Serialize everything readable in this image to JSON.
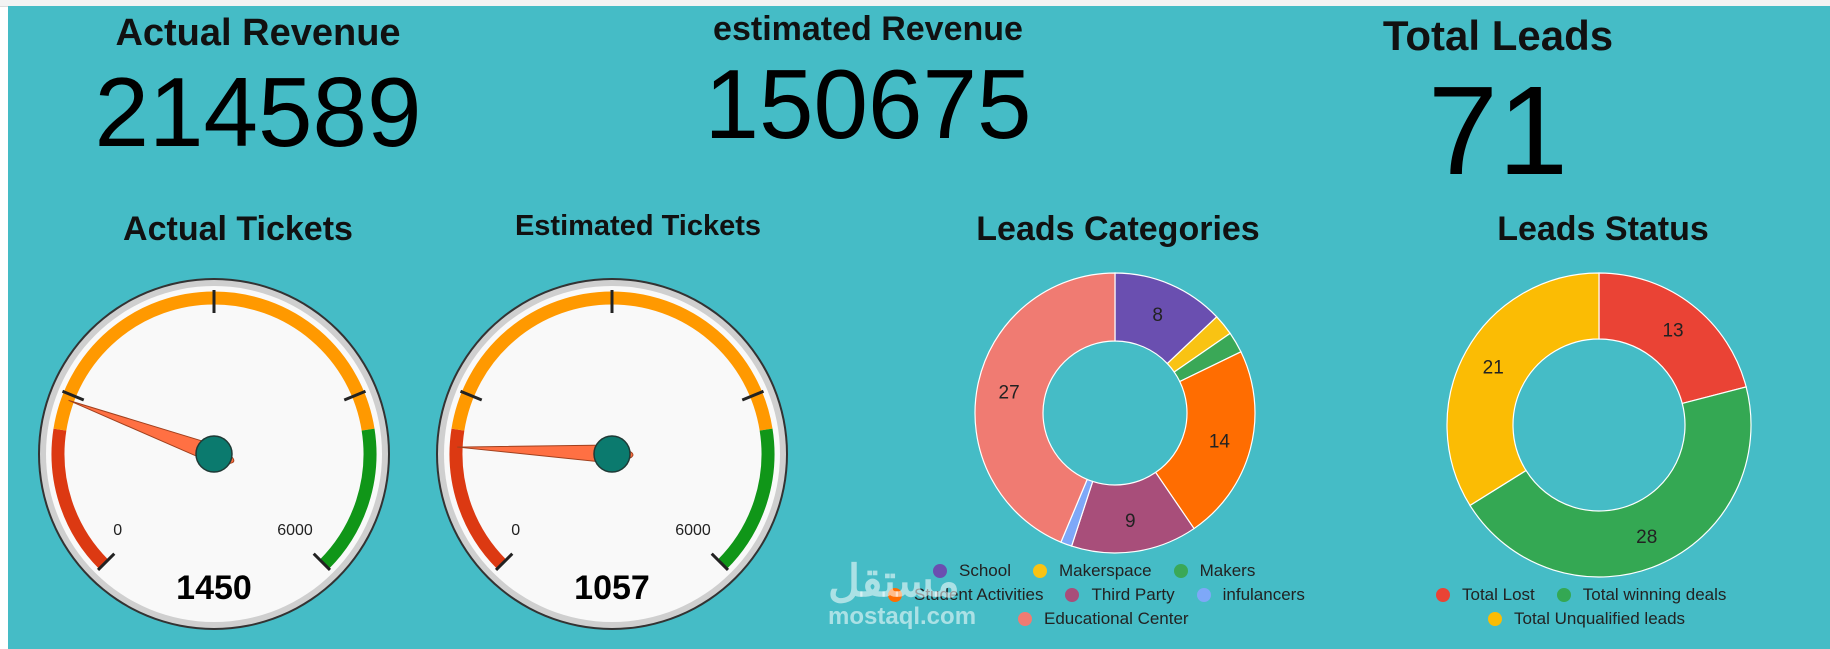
{
  "kpis": {
    "actual_revenue": {
      "label": "Actual Revenue",
      "value": "214589"
    },
    "estimated_revenue": {
      "label": "estimated Revenue",
      "value": "150675"
    },
    "total_leads": {
      "label": "Total Leads",
      "value": "71"
    }
  },
  "gauges": [
    {
      "title": "Actual Tickets",
      "value": 1450,
      "value_text": "1450",
      "min": 0,
      "max": 6000,
      "min_label": "0",
      "max_label": "6000"
    },
    {
      "title": "Estimated Tickets",
      "value": 1057,
      "value_text": "1057",
      "min": 0,
      "max": 6000,
      "min_label": "0",
      "max_label": "6000"
    }
  ],
  "chart_data": [
    {
      "type": "pie",
      "title": "Leads Categories",
      "donut": true,
      "slices": [
        {
          "name": "School",
          "value": 8,
          "label": "8",
          "color": "#6a4fb0"
        },
        {
          "name": "Makerspace",
          "value": 1.5,
          "label": "",
          "color": "#f9c313"
        },
        {
          "name": "Makers",
          "value": 1.5,
          "label": "",
          "color": "#3aa857"
        },
        {
          "name": "Student Activities",
          "value": 14,
          "label": "14",
          "color": "#ff6d01"
        },
        {
          "name": "Third Party",
          "value": 9,
          "label": "9",
          "color": "#a84e7a"
        },
        {
          "name": "infulancers",
          "value": 0.8,
          "label": "",
          "color": "#7ea8f8"
        },
        {
          "name": "Educational Center",
          "value": 27,
          "label": "27",
          "color": "#f07b72"
        }
      ],
      "legend_order": [
        [
          "School",
          "Makerspace",
          "Makers"
        ],
        [
          "Student Activities",
          "Third Party",
          "infulancers"
        ],
        [
          "Educational Center"
        ]
      ],
      "legend_position": "bottom"
    },
    {
      "type": "pie",
      "title": "Leads Status",
      "donut": true,
      "slices": [
        {
          "name": "Total Lost",
          "value": 13,
          "label": "13",
          "color": "#ea4335"
        },
        {
          "name": "Total winning deals",
          "value": 28,
          "label": "28",
          "color": "#34a853"
        },
        {
          "name": "Total Unqualified leads",
          "value": 21,
          "label": "21",
          "color": "#fbbc04"
        }
      ],
      "legend_order": [
        [
          "Total Lost",
          "Total winning deals"
        ],
        [
          "Total Unqualified leads"
        ]
      ],
      "legend_position": "bottom"
    }
  ],
  "watermark": {
    "arabic": "مستقل",
    "latin": "mostaql.com"
  }
}
